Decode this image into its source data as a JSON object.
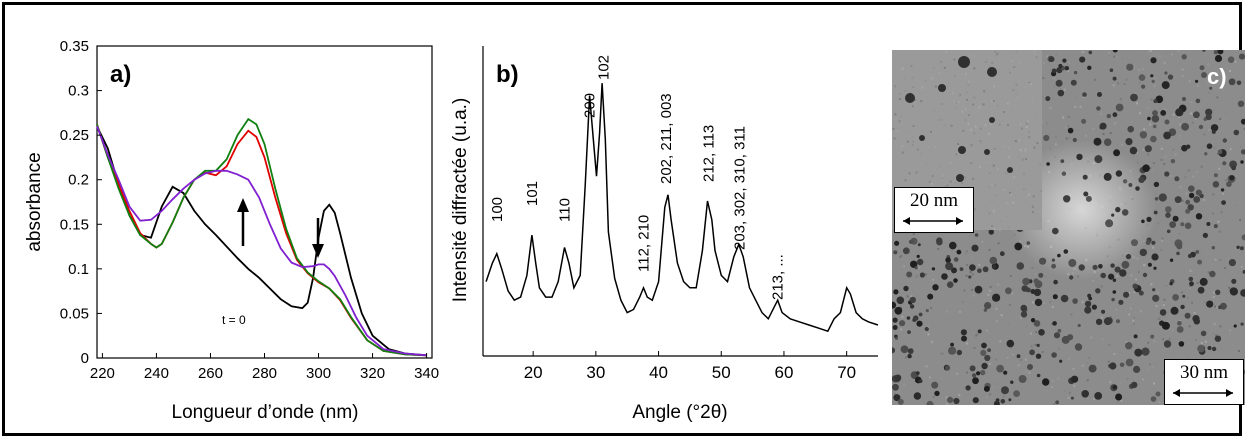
{
  "panels": {
    "a": {
      "label": "a)",
      "annotation": "t = 0"
    },
    "b": {
      "label": "b)"
    },
    "c": {
      "label": "c)",
      "scalebar_inset": "20 nm",
      "scalebar_main": "30 nm"
    }
  },
  "chart_data": [
    {
      "type": "line",
      "panel": "a)",
      "xlabel": "Longueur d’onde (nm)",
      "ylabel": "absorbance",
      "xlim": [
        218,
        342
      ],
      "ylim": [
        0,
        0.35
      ],
      "xticks": [
        "220",
        "240",
        "260",
        "280",
        "300",
        "320",
        "340"
      ],
      "yticks": [
        "0",
        "0.05",
        "0.1",
        "0.15",
        "0.2",
        "0.25",
        "0.3",
        "0.35"
      ],
      "annotations": [
        "t = 0"
      ],
      "series": [
        {
          "color": "#000000",
          "points": [
            [
              218,
              0.26
            ],
            [
              222,
              0.235
            ],
            [
              226,
              0.195
            ],
            [
              230,
              0.16
            ],
            [
              234,
              0.138
            ],
            [
              238,
              0.135
            ],
            [
              242,
              0.17
            ],
            [
              246,
              0.192
            ],
            [
              250,
              0.185
            ],
            [
              254,
              0.165
            ],
            [
              258,
              0.15
            ],
            [
              262,
              0.138
            ],
            [
              266,
              0.125
            ],
            [
              270,
              0.112
            ],
            [
              274,
              0.1
            ],
            [
              278,
              0.09
            ],
            [
              282,
              0.078
            ],
            [
              286,
              0.066
            ],
            [
              290,
              0.058
            ],
            [
              294,
              0.056
            ],
            [
              296,
              0.062
            ],
            [
              298,
              0.09
            ],
            [
              300,
              0.135
            ],
            [
              302,
              0.165
            ],
            [
              304,
              0.172
            ],
            [
              306,
              0.163
            ],
            [
              308,
              0.14
            ],
            [
              312,
              0.09
            ],
            [
              316,
              0.05
            ],
            [
              320,
              0.025
            ],
            [
              326,
              0.01
            ],
            [
              332,
              0.005
            ],
            [
              340,
              0.003
            ]
          ]
        },
        {
          "color": "#e00000",
          "points": [
            [
              218,
              0.262
            ],
            [
              222,
              0.225
            ],
            [
              226,
              0.195
            ],
            [
              230,
              0.165
            ],
            [
              234,
              0.14
            ],
            [
              238,
              0.128
            ],
            [
              240,
              0.124
            ],
            [
              242,
              0.128
            ],
            [
              246,
              0.152
            ],
            [
              250,
              0.18
            ],
            [
              254,
              0.2
            ],
            [
              258,
              0.208
            ],
            [
              262,
              0.205
            ],
            [
              266,
              0.215
            ],
            [
              270,
              0.24
            ],
            [
              274,
              0.255
            ],
            [
              277,
              0.248
            ],
            [
              280,
              0.225
            ],
            [
              284,
              0.18
            ],
            [
              288,
              0.14
            ],
            [
              292,
              0.11
            ],
            [
              296,
              0.095
            ],
            [
              300,
              0.085
            ],
            [
              304,
              0.078
            ],
            [
              308,
              0.065
            ],
            [
              312,
              0.045
            ],
            [
              318,
              0.02
            ],
            [
              324,
              0.008
            ],
            [
              332,
              0.004
            ],
            [
              340,
              0.003
            ]
          ]
        },
        {
          "color": "#108010",
          "points": [
            [
              218,
              0.262
            ],
            [
              222,
              0.225
            ],
            [
              226,
              0.19
            ],
            [
              230,
              0.16
            ],
            [
              234,
              0.138
            ],
            [
              238,
              0.128
            ],
            [
              240,
              0.124
            ],
            [
              242,
              0.128
            ],
            [
              246,
              0.152
            ],
            [
              250,
              0.18
            ],
            [
              254,
              0.2
            ],
            [
              258,
              0.21
            ],
            [
              262,
              0.21
            ],
            [
              266,
              0.223
            ],
            [
              270,
              0.25
            ],
            [
              274,
              0.268
            ],
            [
              277,
              0.262
            ],
            [
              280,
              0.24
            ],
            [
              284,
              0.19
            ],
            [
              288,
              0.145
            ],
            [
              292,
              0.112
            ],
            [
              296,
              0.096
            ],
            [
              300,
              0.086
            ],
            [
              304,
              0.078
            ],
            [
              308,
              0.066
            ],
            [
              312,
              0.046
            ],
            [
              318,
              0.02
            ],
            [
              324,
              0.008
            ],
            [
              332,
              0.004
            ],
            [
              340,
              0.003
            ]
          ]
        },
        {
          "color": "#8020d0",
          "points": [
            [
              218,
              0.26
            ],
            [
              222,
              0.228
            ],
            [
              226,
              0.2
            ],
            [
              230,
              0.17
            ],
            [
              234,
              0.154
            ],
            [
              238,
              0.155
            ],
            [
              242,
              0.165
            ],
            [
              246,
              0.178
            ],
            [
              250,
              0.19
            ],
            [
              254,
              0.2
            ],
            [
              258,
              0.207
            ],
            [
              262,
              0.21
            ],
            [
              266,
              0.21
            ],
            [
              270,
              0.206
            ],
            [
              274,
              0.2
            ],
            [
              278,
              0.18
            ],
            [
              282,
              0.15
            ],
            [
              286,
              0.123
            ],
            [
              290,
              0.107
            ],
            [
              294,
              0.102
            ],
            [
              298,
              0.103
            ],
            [
              300,
              0.105
            ],
            [
              302,
              0.105
            ],
            [
              304,
              0.1
            ],
            [
              306,
              0.092
            ],
            [
              310,
              0.07
            ],
            [
              314,
              0.045
            ],
            [
              318,
              0.025
            ],
            [
              324,
              0.01
            ],
            [
              332,
              0.005
            ],
            [
              340,
              0.003
            ]
          ]
        }
      ]
    },
    {
      "type": "line",
      "panel": "b)",
      "xlabel": "Angle (°2θ)",
      "ylabel": "Intensité diffractée (u.a.)",
      "xlim": [
        12,
        75
      ],
      "ylim": [
        0,
        100
      ],
      "xticks": [
        "20",
        "30",
        "40",
        "50",
        "60",
        "70"
      ],
      "peak_labels": [
        "100",
        "101",
        "110",
        "200",
        "102",
        "112, 210",
        "202, 211, 003",
        "212, 113",
        "203, 302, 310, 311",
        "213, ..."
      ],
      "series": [
        {
          "color": "#000000",
          "points": [
            [
              12.5,
              24
            ],
            [
              13.5,
              30
            ],
            [
              14.2,
              33
            ],
            [
              15,
              28
            ],
            [
              16,
              21
            ],
            [
              17,
              18
            ],
            [
              18,
              19
            ],
            [
              19,
              26
            ],
            [
              19.8,
              39
            ],
            [
              20.4,
              30
            ],
            [
              21,
              22
            ],
            [
              22,
              19
            ],
            [
              23,
              19
            ],
            [
              24,
              24
            ],
            [
              25,
              35
            ],
            [
              25.7,
              30
            ],
            [
              26.5,
              22
            ],
            [
              27.5,
              26
            ],
            [
              28.3,
              55
            ],
            [
              29,
              84
            ],
            [
              29.6,
              70
            ],
            [
              30.1,
              58
            ],
            [
              30.6,
              72
            ],
            [
              31,
              88
            ],
            [
              31.5,
              70
            ],
            [
              32,
              40
            ],
            [
              33,
              25
            ],
            [
              34,
              18
            ],
            [
              35,
              14
            ],
            [
              36,
              15
            ],
            [
              37,
              19
            ],
            [
              37.6,
              22
            ],
            [
              38.2,
              19
            ],
            [
              39,
              18
            ],
            [
              40,
              24
            ],
            [
              41,
              48
            ],
            [
              41.5,
              52
            ],
            [
              42,
              44
            ],
            [
              43,
              30
            ],
            [
              44,
              24
            ],
            [
              45,
              22
            ],
            [
              46,
              22
            ],
            [
              47,
              34
            ],
            [
              47.8,
              50
            ],
            [
              48.5,
              44
            ],
            [
              49,
              34
            ],
            [
              50,
              26
            ],
            [
              51,
              24
            ],
            [
              52,
              32
            ],
            [
              52.8,
              36
            ],
            [
              53.5,
              32
            ],
            [
              54.5,
              22
            ],
            [
              55.5,
              18
            ],
            [
              56.5,
              14
            ],
            [
              57.5,
              12
            ],
            [
              58.5,
              16
            ],
            [
              59,
              18
            ],
            [
              59.7,
              14
            ],
            [
              61,
              12
            ],
            [
              62.5,
              11
            ],
            [
              64,
              10
            ],
            [
              65.5,
              9
            ],
            [
              67,
              8
            ],
            [
              68,
              12
            ],
            [
              69,
              14
            ],
            [
              70,
              22
            ],
            [
              70.6,
              20
            ],
            [
              71.5,
              14
            ],
            [
              72.5,
              12
            ],
            [
              73.5,
              11
            ],
            [
              75,
              10
            ]
          ]
        }
      ]
    }
  ]
}
